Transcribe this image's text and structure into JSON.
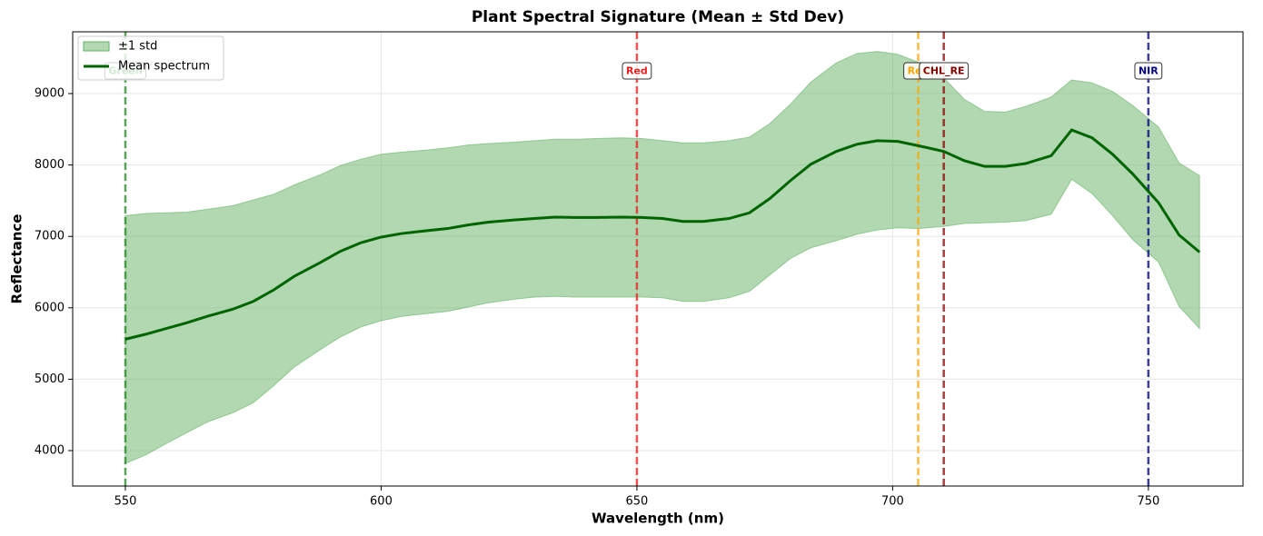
{
  "chart_data": {
    "type": "line",
    "title": "Plant Spectral Signature (Mean ± Std Dev)",
    "x_label": "Wavelength (nm)",
    "y_label": "Reflectance",
    "x": [
      550,
      554,
      558,
      562,
      566,
      571,
      575,
      579,
      583,
      588,
      592,
      596,
      600,
      604,
      609,
      613,
      617,
      621,
      626,
      630,
      634,
      638,
      642,
      647,
      651,
      655,
      659,
      663,
      668,
      672,
      676,
      680,
      684,
      689,
      693,
      697,
      701,
      705,
      710,
      714,
      718,
      722,
      726,
      731,
      735,
      739,
      743,
      747,
      752,
      756,
      760
    ],
    "band": {
      "name": "±1 std",
      "color": "#66b266",
      "upper": [
        7290,
        7320,
        7330,
        7340,
        7380,
        7430,
        7510,
        7590,
        7720,
        7860,
        7990,
        8080,
        8150,
        8180,
        8210,
        8240,
        8280,
        8300,
        8320,
        8340,
        8360,
        8360,
        8370,
        8380,
        8370,
        8340,
        8310,
        8310,
        8340,
        8390,
        8580,
        8850,
        9160,
        9430,
        9560,
        9590,
        9550,
        9440,
        9220,
        8920,
        8750,
        8740,
        8820,
        8950,
        9190,
        9150,
        9030,
        8830,
        8530,
        8030,
        7850
      ],
      "lower": [
        3820,
        3940,
        4100,
        4250,
        4400,
        4530,
        4670,
        4910,
        5170,
        5410,
        5590,
        5730,
        5820,
        5880,
        5920,
        5950,
        6010,
        6070,
        6120,
        6150,
        6160,
        6150,
        6150,
        6150,
        6150,
        6140,
        6090,
        6090,
        6140,
        6230,
        6460,
        6690,
        6840,
        6940,
        7030,
        7090,
        7120,
        7110,
        7140,
        7180,
        7190,
        7200,
        7220,
        7310,
        7800,
        7600,
        7290,
        6950,
        6640,
        6020,
        5710
      ]
    },
    "series": [
      {
        "name": "Mean spectrum",
        "color": "#006400",
        "values": [
          5560,
          5630,
          5710,
          5790,
          5880,
          5980,
          6090,
          6250,
          6440,
          6630,
          6790,
          6910,
          6990,
          7040,
          7080,
          7110,
          7160,
          7200,
          7230,
          7250,
          7270,
          7265,
          7265,
          7270,
          7265,
          7250,
          7210,
          7210,
          7250,
          7330,
          7530,
          7780,
          8010,
          8190,
          8290,
          8340,
          8330,
          8270,
          8190,
          8060,
          7980,
          7980,
          8020,
          8130,
          8490,
          8380,
          8150,
          7870,
          7470,
          7020,
          6780
        ]
      }
    ],
    "markers": [
      {
        "label": "Green",
        "x": 550,
        "color": "#228b22"
      },
      {
        "label": "Red",
        "x": 650,
        "color": "#ee1c1c"
      },
      {
        "label": "Red",
        "x": 705,
        "color": "#ffa500"
      },
      {
        "label": "CHL_RE",
        "x": 710,
        "color": "#8b0000"
      },
      {
        "label": "NIR",
        "x": 750,
        "color": "#000080"
      }
    ],
    "xlim": [
      539.7,
      768.5
    ],
    "ylim": [
      3504,
      9865
    ],
    "xticks": [
      550,
      600,
      650,
      700,
      750
    ],
    "yticks": [
      4000,
      5000,
      6000,
      7000,
      8000,
      9000
    ],
    "grid": true,
    "legend": "upper left"
  }
}
